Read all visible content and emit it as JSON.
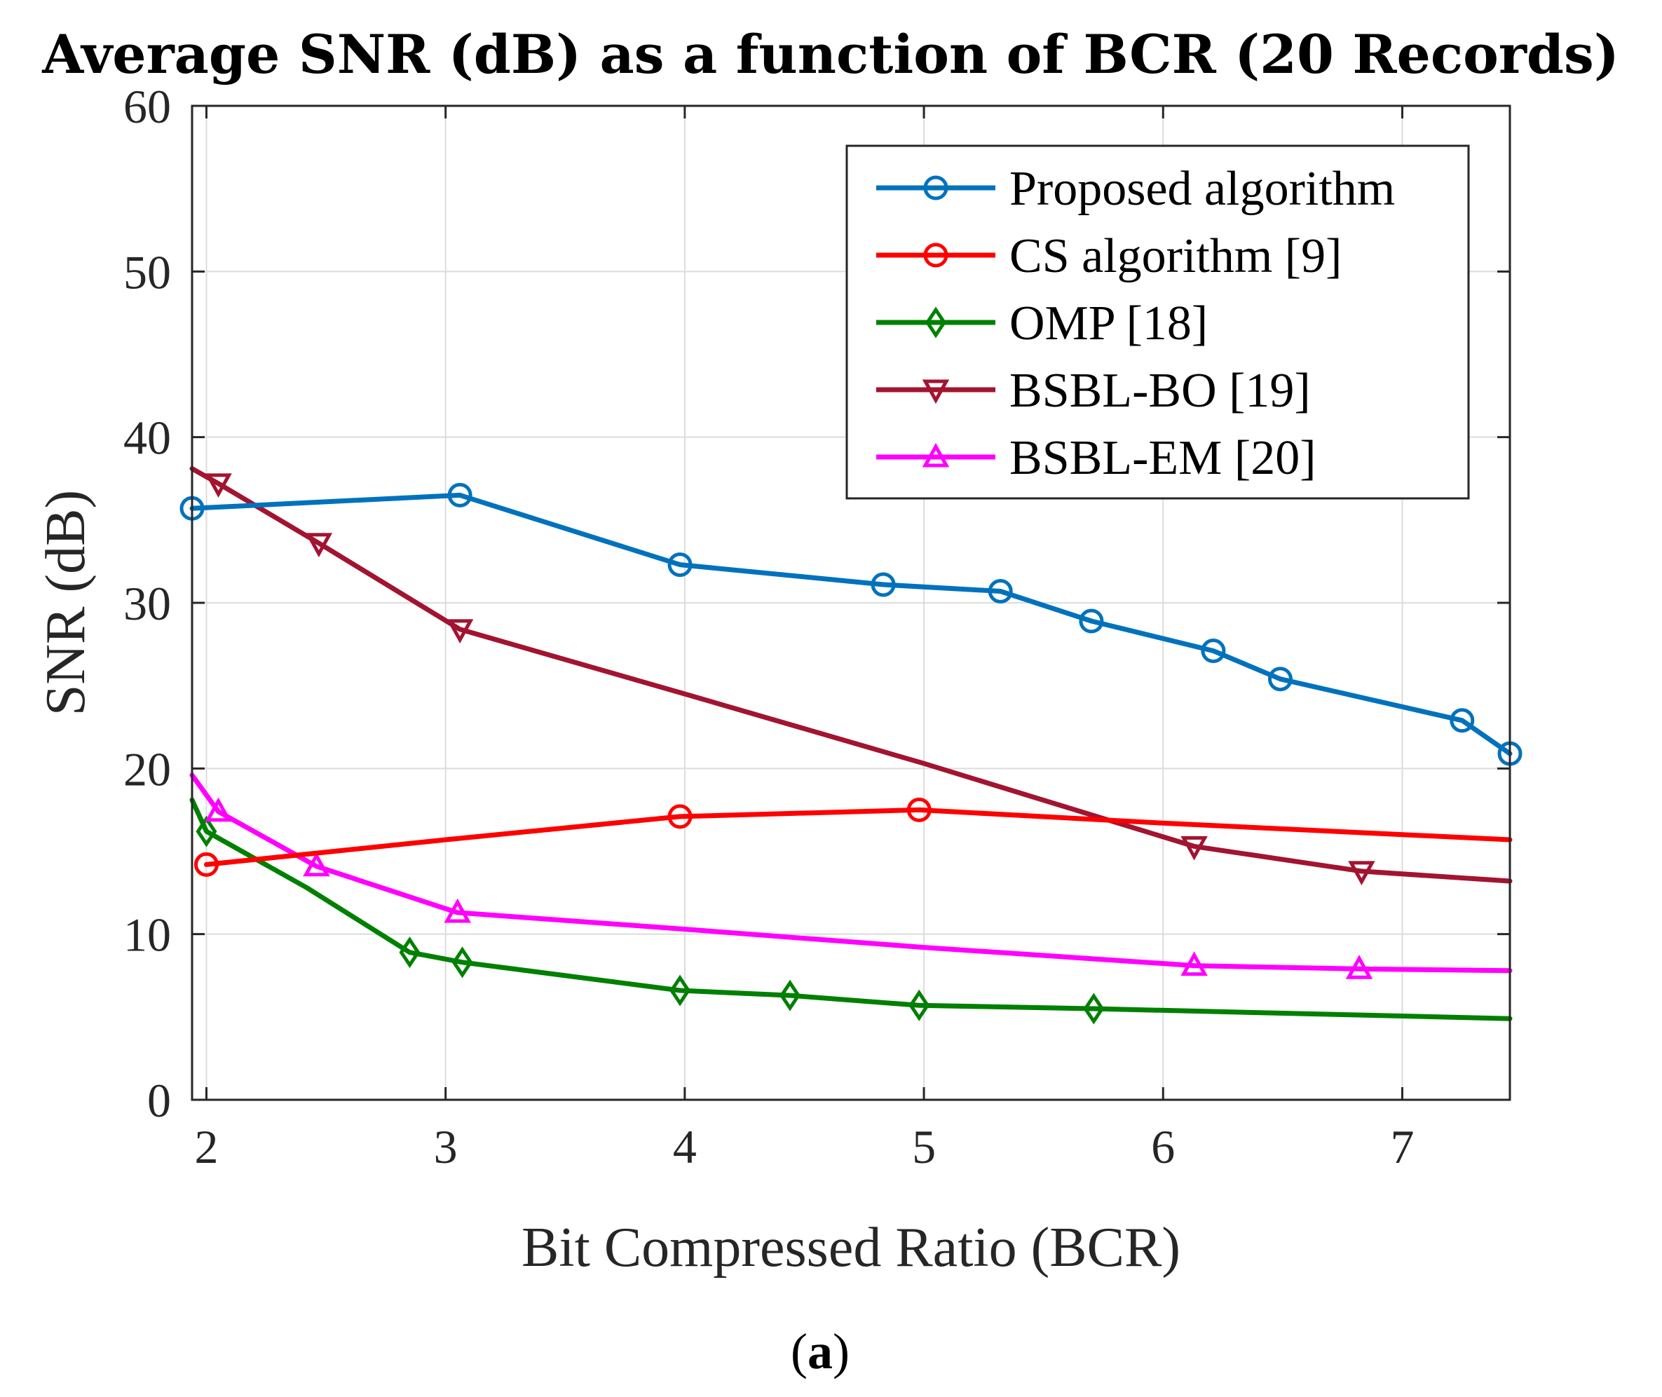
{
  "chart_data": {
    "type": "line",
    "title": "Average SNR (dB) as a function of BCR (20 Records)",
    "xlabel": "Bit Compressed Ratio (BCR)",
    "ylabel": "SNR (dB)",
    "xlim": [
      1.94,
      7.45
    ],
    "ylim": [
      0,
      60
    ],
    "xticks": [
      2,
      3,
      4,
      5,
      6,
      7
    ],
    "yticks": [
      0,
      10,
      20,
      30,
      40,
      50,
      60
    ],
    "grid": true,
    "legend_position": "top-right",
    "series": [
      {
        "name": "Proposed algorithm",
        "color": "#0072BD",
        "marker": "circle",
        "points": [
          [
            1.94,
            35.7
          ],
          [
            3.06,
            36.5
          ],
          [
            3.98,
            32.3
          ],
          [
            4.83,
            31.1
          ],
          [
            5.32,
            30.7
          ],
          [
            5.7,
            28.9
          ],
          [
            6.21,
            27.1
          ],
          [
            6.49,
            25.4
          ],
          [
            7.25,
            22.9
          ],
          [
            7.45,
            20.9
          ]
        ],
        "markers": [
          [
            1.94,
            35.7
          ],
          [
            3.06,
            36.5
          ],
          [
            3.98,
            32.3
          ],
          [
            4.83,
            31.1
          ],
          [
            5.32,
            30.7
          ],
          [
            5.7,
            28.9
          ],
          [
            6.21,
            27.1
          ],
          [
            6.49,
            25.4
          ],
          [
            7.25,
            22.9
          ],
          [
            7.45,
            20.9
          ]
        ]
      },
      {
        "name": "CS algorithm [9]",
        "color": "#FF0000",
        "marker": "circle",
        "points": [
          [
            2.0,
            14.2
          ],
          [
            3.0,
            15.7
          ],
          [
            3.98,
            17.1
          ],
          [
            4.98,
            17.5
          ],
          [
            6.0,
            16.7
          ],
          [
            7.45,
            15.7
          ]
        ],
        "markers": [
          [
            2.0,
            14.2
          ],
          [
            3.98,
            17.1
          ],
          [
            4.98,
            17.5
          ]
        ]
      },
      {
        "name": "OMP [18]",
        "color": "#008000",
        "marker": "diamond",
        "points": [
          [
            1.94,
            18.1
          ],
          [
            2.0,
            16.2
          ],
          [
            2.42,
            12.8
          ],
          [
            2.85,
            8.9
          ],
          [
            3.07,
            8.3
          ],
          [
            3.98,
            6.6
          ],
          [
            4.44,
            6.3
          ],
          [
            4.98,
            5.7
          ],
          [
            5.71,
            5.5
          ],
          [
            7.45,
            4.9
          ]
        ],
        "markers": [
          [
            2.0,
            16.2
          ],
          [
            2.85,
            8.9
          ],
          [
            3.07,
            8.3
          ],
          [
            3.98,
            6.6
          ],
          [
            4.44,
            6.3
          ],
          [
            4.98,
            5.7
          ],
          [
            5.71,
            5.5
          ]
        ]
      },
      {
        "name": "BSBL-BO [19]",
        "color": "#A2142F",
        "marker": "triangle-down",
        "points": [
          [
            1.94,
            38.1
          ],
          [
            2.05,
            37.2
          ],
          [
            2.47,
            33.6
          ],
          [
            3.06,
            28.4
          ],
          [
            4.0,
            24.5
          ],
          [
            5.0,
            20.3
          ],
          [
            5.7,
            17.2
          ],
          [
            6.13,
            15.3
          ],
          [
            6.83,
            13.8
          ],
          [
            7.45,
            13.2
          ]
        ],
        "markers": [
          [
            2.05,
            37.2
          ],
          [
            2.47,
            33.6
          ],
          [
            3.06,
            28.4
          ],
          [
            6.13,
            15.3
          ],
          [
            6.83,
            13.8
          ]
        ]
      },
      {
        "name": "BSBL-EM [20]",
        "color": "#FF00FF",
        "marker": "triangle-up",
        "points": [
          [
            1.94,
            19.6
          ],
          [
            2.05,
            17.4
          ],
          [
            2.46,
            14.1
          ],
          [
            3.05,
            11.3
          ],
          [
            4.0,
            10.3
          ],
          [
            5.0,
            9.2
          ],
          [
            6.13,
            8.1
          ],
          [
            6.82,
            7.9
          ],
          [
            7.45,
            7.8
          ]
        ],
        "markers": [
          [
            2.05,
            17.4
          ],
          [
            2.46,
            14.1
          ],
          [
            3.05,
            11.3
          ],
          [
            6.13,
            8.1
          ],
          [
            6.82,
            7.9
          ]
        ]
      }
    ]
  },
  "caption": {
    "open": "(",
    "label": "a",
    "close": ")"
  }
}
